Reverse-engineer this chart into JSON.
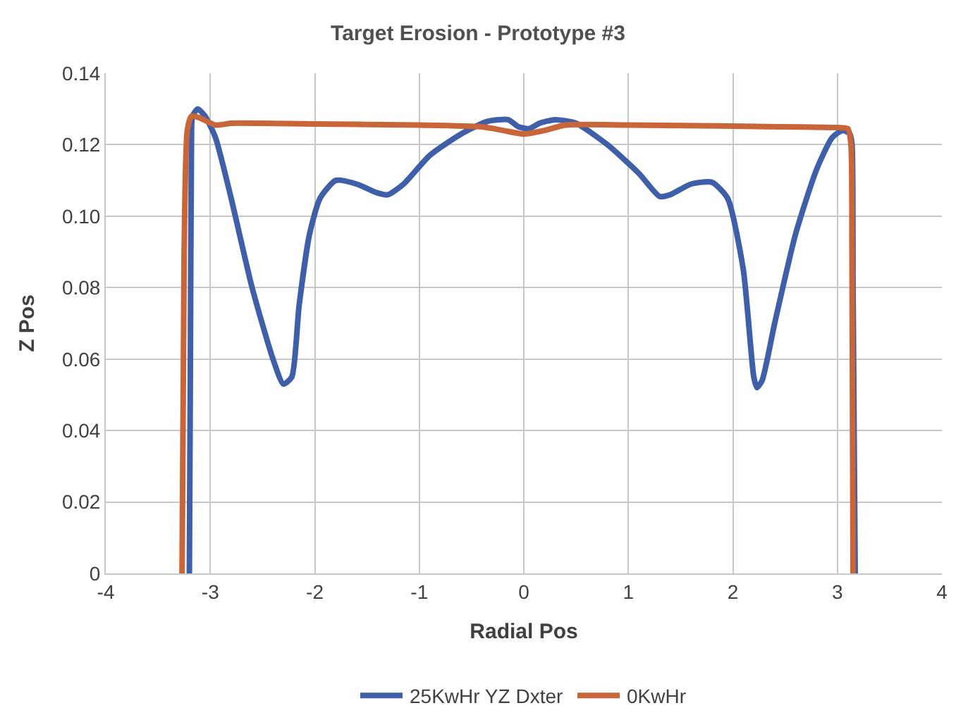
{
  "chart_data": {
    "type": "line",
    "title": "Target Erosion - Prototype #3",
    "xlabel": "Radial Pos",
    "ylabel": "Z Pos",
    "xlim": [
      -4,
      4
    ],
    "xticks": [
      -4,
      -3,
      -2,
      -1,
      0,
      1,
      2,
      3,
      4
    ],
    "ylim": [
      0,
      0.14
    ],
    "yticks": [
      0,
      0.02,
      0.04,
      0.06,
      0.08,
      {
        "value": 0.1,
        "label": "0.10"
      },
      0.12,
      0.14
    ],
    "grid": true,
    "legend": "bottom",
    "marker": "none",
    "line_style": "solid",
    "series": [
      {
        "name": "25KwHr YZ Dxter",
        "color": "#3f5fa8",
        "x": [
          -3.2,
          -3.19,
          -3.18,
          -3.17,
          -3.12,
          -3.05,
          -2.95,
          -2.8,
          -2.6,
          -2.4,
          -2.3,
          -2.22,
          -2.15,
          -2.05,
          -1.95,
          -1.8,
          -1.6,
          -1.4,
          -1.3,
          -1.15,
          -0.9,
          -0.6,
          -0.35,
          -0.15,
          -0.05,
          0.05,
          0.15,
          0.3,
          0.5,
          0.8,
          1.1,
          1.3,
          1.4,
          1.6,
          1.8,
          1.95,
          2.1,
          2.2,
          2.23,
          2.28,
          2.4,
          2.6,
          2.8,
          2.95,
          3.05,
          3.12,
          3.14,
          3.15,
          3.17
        ],
        "values": [
          0,
          0.06,
          0.12,
          0.128,
          0.13,
          0.128,
          0.122,
          0.105,
          0.08,
          0.06,
          0.053,
          0.055,
          0.075,
          0.095,
          0.105,
          0.11,
          0.109,
          0.1065,
          0.106,
          0.109,
          0.117,
          0.123,
          0.1265,
          0.127,
          0.125,
          0.1245,
          0.126,
          0.127,
          0.126,
          0.12,
          0.112,
          0.1055,
          0.106,
          0.109,
          0.1095,
          0.105,
          0.085,
          0.055,
          0.052,
          0.054,
          0.07,
          0.095,
          0.113,
          0.122,
          0.124,
          0.123,
          0.12,
          0.08,
          0
        ]
      },
      {
        "name": "0KwHr",
        "color": "#c8663a",
        "x": [
          -3.27,
          -3.25,
          -3.22,
          -3.18,
          -3.1,
          -2.95,
          -2.8,
          -2.5,
          -2,
          -1,
          -0.4,
          -0.2,
          0,
          0.2,
          0.4,
          1,
          2,
          3,
          3.1,
          3.13,
          3.14,
          3.15
        ],
        "values": [
          0,
          0.09,
          0.124,
          0.128,
          0.1275,
          0.1255,
          0.126,
          0.126,
          0.1258,
          0.1255,
          0.125,
          0.124,
          0.123,
          0.124,
          0.1255,
          0.1255,
          0.1252,
          0.1248,
          0.1245,
          0.12,
          0.09,
          0
        ]
      }
    ]
  }
}
